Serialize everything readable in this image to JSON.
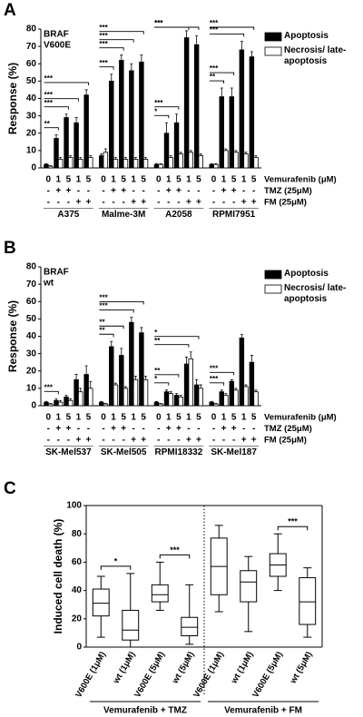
{
  "chart_data": [
    {
      "type": "bar",
      "panel": "A",
      "subtitle": [
        "BRAF",
        "V600E"
      ],
      "y_label": "Response (%)",
      "ylim": [
        0,
        80
      ],
      "yticks": [
        0,
        10,
        20,
        30,
        40,
        50,
        60,
        70,
        80
      ],
      "groups": [
        "A375",
        "Malme-3M",
        "A2058",
        "RPMI7951"
      ],
      "condition_rows": [
        {
          "label": "Vemurafenib (μM)",
          "values": [
            0,
            1,
            5,
            1,
            5
          ]
        },
        {
          "label": "TMZ (25μM)",
          "values": [
            "-",
            "+",
            "+",
            "-",
            "-"
          ]
        },
        {
          "label": "FM (25μM)",
          "values": [
            "-",
            "-",
            "-",
            "+",
            "+"
          ]
        }
      ],
      "series": [
        {
          "name": "Apoptosis",
          "color": "#000000",
          "values": [
            2,
            17,
            29,
            26,
            42,
            7,
            50,
            62,
            56,
            61,
            2,
            20,
            26,
            75,
            71,
            2,
            41,
            41,
            68,
            64
          ],
          "errors": [
            0.5,
            2,
            2,
            3,
            3,
            1,
            4,
            3,
            4,
            4,
            0.5,
            6,
            5,
            4,
            5,
            0.5,
            5,
            5,
            5,
            3
          ]
        },
        {
          "name": "Necrosis/ late-apoptosis",
          "color": "#ffffff",
          "values": [
            1,
            5,
            6,
            5,
            6,
            9,
            5,
            5,
            5,
            5,
            2,
            6,
            8,
            9,
            7,
            2,
            10,
            9,
            8,
            6
          ],
          "errors": [
            0.3,
            1,
            1,
            1,
            1,
            2,
            1,
            1,
            1,
            1,
            0.5,
            1,
            1,
            1,
            1,
            0.5,
            1,
            1,
            1,
            1
          ]
        }
      ],
      "brackets": [
        [
          "**",
          "***",
          "***",
          "***"
        ],
        [
          "***",
          "***",
          "***",
          "***"
        ],
        [
          "*",
          "***",
          "***",
          "***"
        ],
        [
          "**",
          "***",
          "***",
          "***"
        ]
      ]
    },
    {
      "type": "bar",
      "panel": "B",
      "subtitle": [
        "BRAF",
        "wt"
      ],
      "y_label": "Response (%)",
      "ylim": [
        0,
        80
      ],
      "yticks": [
        0,
        10,
        20,
        30,
        40,
        50,
        60,
        70,
        80
      ],
      "groups": [
        "SK-Mel537",
        "SK-Mel505",
        "RPMI18332",
        "SK-Mel187"
      ],
      "condition_rows": [
        {
          "label": "Vemurafenib (μM)",
          "values": [
            0,
            1,
            5,
            1,
            5
          ]
        },
        {
          "label": "TMZ (25μM)",
          "values": [
            "-",
            "+",
            "+",
            "-",
            "-"
          ]
        },
        {
          "label": "FM (25μM)",
          "values": [
            "-",
            "-",
            "-",
            "+",
            "+"
          ]
        }
      ],
      "series": [
        {
          "name": "Apoptosis",
          "color": "#000000",
          "values": [
            2,
            3,
            5,
            15,
            18,
            2,
            34,
            29,
            48,
            42,
            2,
            8,
            6,
            24,
            12,
            2,
            8,
            14,
            39,
            25
          ],
          "errors": [
            0.5,
            1,
            1,
            3,
            5,
            0.5,
            3,
            4,
            3,
            3,
            0.5,
            1,
            1,
            4,
            3,
            0.5,
            1,
            1,
            2,
            4
          ]
        },
        {
          "name": "Necrosis/ late-apoptosis",
          "color": "#ffffff",
          "values": [
            1,
            2,
            3,
            8,
            10,
            1,
            12,
            10,
            15,
            15,
            1,
            7,
            5,
            27,
            10,
            1,
            6,
            9,
            11,
            8
          ],
          "errors": [
            0.3,
            1,
            1,
            2,
            4,
            0.3,
            1,
            1,
            2,
            2,
            0.3,
            1,
            1,
            4,
            2,
            0.3,
            1,
            1,
            1,
            1
          ]
        }
      ],
      "brackets": [
        [
          "***"
        ],
        [
          "**",
          "**",
          "***",
          "***"
        ],
        [
          "*",
          "**",
          "**",
          "*"
        ],
        [
          "***",
          "***"
        ]
      ]
    },
    {
      "type": "box",
      "panel": "C",
      "y_label": "Induced cell death (%)",
      "ylim": [
        0,
        100
      ],
      "yticks": [
        0,
        20,
        40,
        60,
        80,
        100
      ],
      "categories": [
        "V600E (1μM)",
        "wt (1μM)",
        "V600E (5μM)",
        "wt (5μM)",
        "V600E (1μM)",
        "wt (1μM)",
        "V600E (5μM)",
        "wt (5μM)"
      ],
      "stats": [
        {
          "min": 7,
          "q1": 22,
          "median": 31,
          "q3": 41,
          "max": 50
        },
        {
          "min": 0,
          "q1": 5,
          "median": 12,
          "q3": 26,
          "max": 52
        },
        {
          "min": 26,
          "q1": 32,
          "median": 37,
          "q3": 44,
          "max": 60
        },
        {
          "min": 2,
          "q1": 8,
          "median": 14,
          "q3": 21,
          "max": 44
        },
        {
          "min": 25,
          "q1": 37,
          "median": 57,
          "q3": 77,
          "max": 86
        },
        {
          "min": 11,
          "q1": 32,
          "median": 46,
          "q3": 54,
          "max": 64
        },
        {
          "min": 40,
          "q1": 50,
          "median": 58,
          "q3": 66,
          "max": 80
        },
        {
          "min": 7,
          "q1": 16,
          "median": 32,
          "q3": 49,
          "max": 56
        }
      ],
      "groups": [
        "Vemurafenib + TMZ",
        "Vemurafenib + FM"
      ],
      "comparisons": [
        {
          "label": "*",
          "pair": [
            0,
            1
          ]
        },
        {
          "label": "***",
          "pair": [
            2,
            3
          ]
        },
        {
          "label": "***",
          "pair": [
            6,
            7
          ]
        }
      ]
    }
  ]
}
